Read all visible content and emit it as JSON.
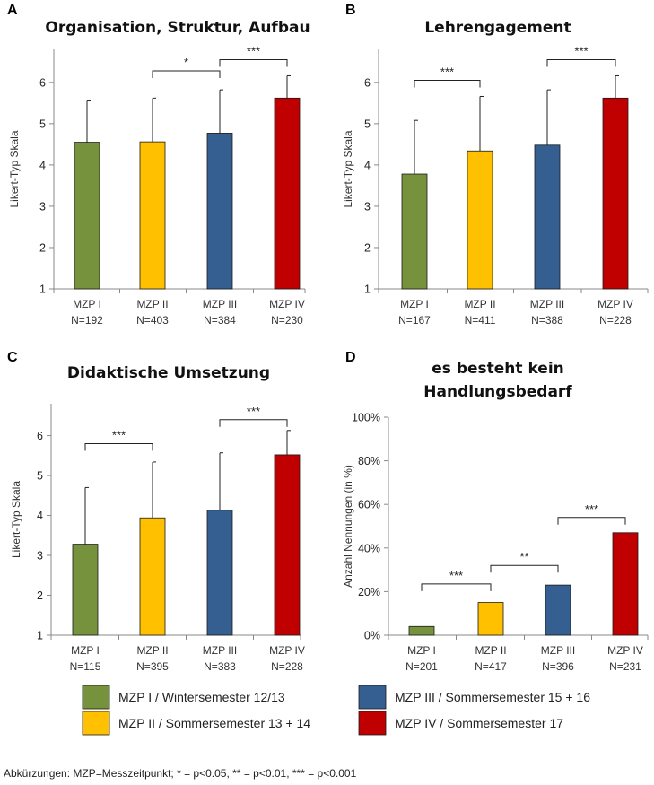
{
  "chart_data": [
    {
      "panel": "A",
      "type": "bar",
      "title": [
        "Organisation, Struktur, Aufbau"
      ],
      "ylabel": "Likert-Typ Skala",
      "ylim": [
        1,
        6.8
      ],
      "yticks": [
        1,
        2,
        3,
        4,
        5,
        6
      ],
      "categories": [
        "MZP I",
        "MZP II",
        "MZP III",
        "MZP IV"
      ],
      "n_labels": [
        "N=192",
        "N=403",
        "N=384",
        "N=230"
      ],
      "values": [
        4.55,
        4.56,
        4.77,
        5.62
      ],
      "error_upper": [
        5.55,
        5.62,
        5.82,
        6.16
      ],
      "significance": [
        {
          "from": 1,
          "to": 2,
          "label": "*",
          "y": 6.28
        },
        {
          "from": 2,
          "to": 3,
          "label": "***",
          "y": 6.55
        }
      ]
    },
    {
      "panel": "B",
      "type": "bar",
      "title": [
        "Lehrengagement"
      ],
      "ylabel": "Likert-Typ Skala",
      "ylim": [
        1,
        6.8
      ],
      "yticks": [
        1,
        2,
        3,
        4,
        5,
        6
      ],
      "categories": [
        "MZP I",
        "MZP II",
        "MZP III",
        "MZP IV"
      ],
      "n_labels": [
        "N=167",
        "N=411",
        "N=388",
        "N=228"
      ],
      "values": [
        3.78,
        4.34,
        4.48,
        5.62
      ],
      "error_upper": [
        5.08,
        5.66,
        5.82,
        6.16
      ],
      "significance": [
        {
          "from": 0,
          "to": 1,
          "label": "***",
          "y": 6.05
        },
        {
          "from": 2,
          "to": 3,
          "label": "***",
          "y": 6.55
        }
      ]
    },
    {
      "panel": "C",
      "type": "bar",
      "title": [
        "Didaktische Umsetzung"
      ],
      "ylabel": "Likert-Typ Skala",
      "ylim": [
        1,
        6.8
      ],
      "yticks": [
        1,
        2,
        3,
        4,
        5,
        6
      ],
      "categories": [
        "MZP I",
        "MZP II",
        "MZP III",
        "MZP IV"
      ],
      "n_labels": [
        "N=115",
        "N=395",
        "N=383",
        "N=228"
      ],
      "values": [
        3.28,
        3.94,
        4.13,
        5.52
      ],
      "error_upper": [
        4.7,
        5.34,
        5.57,
        6.13
      ],
      "significance": [
        {
          "from": 0,
          "to": 1,
          "label": "***",
          "y": 5.8
        },
        {
          "from": 2,
          "to": 3,
          "label": "***",
          "y": 6.4
        }
      ]
    },
    {
      "panel": "D",
      "type": "bar",
      "title": [
        "es besteht kein",
        "Handlungsbedarf"
      ],
      "ylabel": "Anzahl Nennungen (in %)",
      "ylim": [
        0,
        100
      ],
      "yticks": [
        0,
        20,
        40,
        60,
        80,
        100
      ],
      "ytick_suffix": "%",
      "categories": [
        "MZP I",
        "MZP II",
        "MZP III",
        "MZP IV"
      ],
      "n_labels": [
        "N=201",
        "N=417",
        "N=396",
        "N=231"
      ],
      "values": [
        4,
        15,
        23,
        47
      ],
      "significance": [
        {
          "from": 0,
          "to": 1,
          "label": "***",
          "y": 23.5
        },
        {
          "from": 1,
          "to": 2,
          "label": "**",
          "y": 32
        },
        {
          "from": 2,
          "to": 3,
          "label": "***",
          "y": 54
        }
      ]
    }
  ],
  "legend": [
    {
      "label": "MZP I / Wintersemester 12/13",
      "color": "#76923c"
    },
    {
      "label": "MZP II / Sommersemester 13 + 14",
      "color": "#ffc000"
    },
    {
      "label": "MZP III / Sommersemester 15 + 16",
      "color": "#365f91"
    },
    {
      "label": "MZP IV / Sommersemester 17",
      "color": "#c00000"
    }
  ],
  "bar_colors": [
    "#76923c",
    "#ffc000",
    "#365f91",
    "#c00000"
  ],
  "footer": "Abkürzungen: MZP=Messzeitpunkt; * = p<0.05, ** = p<0.01, *** = p<0.001"
}
